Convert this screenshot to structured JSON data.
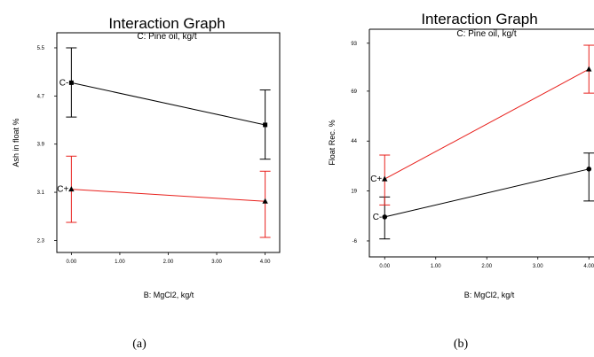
{
  "chart_data": [
    {
      "type": "line",
      "title": "Interaction Graph",
      "subtitle": "C: Pine oil, kg/t",
      "xlabel": "B: MgCl2, kg/t",
      "ylabel": "Ash in float %",
      "xlim": [
        -0.3,
        4.3
      ],
      "ylim": [
        2.1,
        5.75
      ],
      "xticks": [
        "0.00",
        "1.00",
        "2.00",
        "3.00",
        "4.00"
      ],
      "xtick_values": [
        0,
        1,
        2,
        3,
        4
      ],
      "yticks": [
        "2.3",
        "3.1",
        "3.9",
        "4.7",
        "5.5"
      ],
      "ytick_values": [
        2.3,
        3.1,
        3.9,
        4.7,
        5.5
      ],
      "grid": false,
      "series": [
        {
          "name": "C-",
          "color": "#000000",
          "marker": "square",
          "x": [
            0,
            4
          ],
          "y": [
            4.92,
            4.22
          ],
          "err_low": [
            4.35,
            3.65
          ],
          "err_high": [
            5.5,
            4.8
          ]
        },
        {
          "name": "C+",
          "color": "#e8201c",
          "marker": "triangle",
          "x": [
            0,
            4
          ],
          "y": [
            3.15,
            2.95
          ],
          "err_low": [
            2.6,
            2.35
          ],
          "err_high": [
            3.7,
            3.45
          ]
        }
      ],
      "caption": "(a)"
    },
    {
      "type": "line",
      "title": "Interaction Graph",
      "subtitle": "C: Pine oil, kg/t",
      "xlabel": "B: MgCl2, kg/t",
      "ylabel": "Float Rec. %",
      "xlim": [
        -0.3,
        4.1
      ],
      "ylim": [
        -14,
        100
      ],
      "xticks": [
        "0.00",
        "1.00",
        "2.00",
        "3.00",
        "4.00"
      ],
      "xtick_values": [
        0,
        1,
        2,
        3,
        4
      ],
      "yticks": [
        "-6",
        "19",
        "44",
        "69",
        "93"
      ],
      "ytick_values": [
        -6,
        19,
        44,
        69,
        93
      ],
      "grid": false,
      "series": [
        {
          "name": "C-",
          "color": "#000000",
          "marker": "circle",
          "x": [
            0,
            4
          ],
          "y": [
            6,
            30
          ],
          "err_low": [
            -5,
            14
          ],
          "err_high": [
            16,
            38
          ]
        },
        {
          "name": "C+",
          "color": "#e8201c",
          "marker": "triangle",
          "x": [
            0,
            4
          ],
          "y": [
            25,
            80
          ],
          "err_low": [
            12,
            68
          ],
          "err_high": [
            37,
            92
          ]
        }
      ],
      "caption": "(b)"
    }
  ]
}
